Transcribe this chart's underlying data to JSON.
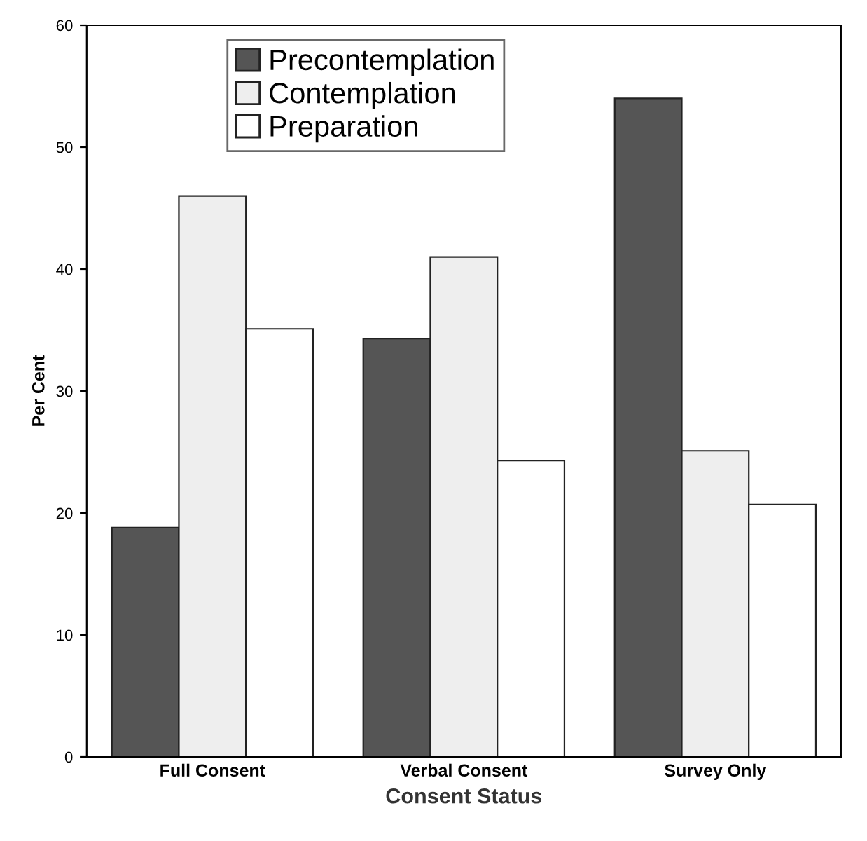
{
  "chart_data": {
    "type": "bar",
    "xlabel": "Consent Status",
    "ylabel": "Per Cent",
    "categories": [
      "Full Consent",
      "Verbal Consent",
      "Survey Only"
    ],
    "series": [
      {
        "name": "Precontemplation",
        "color": "#555555",
        "values": [
          18.8,
          34.3,
          54
        ]
      },
      {
        "name": "Contemplation",
        "color": "#eeeeee",
        "values": [
          46,
          41,
          25.1
        ]
      },
      {
        "name": "Preparation",
        "color": "#ffffff",
        "values": [
          35.1,
          24.3,
          20.7
        ]
      }
    ],
    "ylim": [
      0,
      60
    ],
    "yticks": [
      0,
      10,
      20,
      30,
      40,
      50,
      60
    ],
    "grid": false,
    "legend": "top"
  }
}
